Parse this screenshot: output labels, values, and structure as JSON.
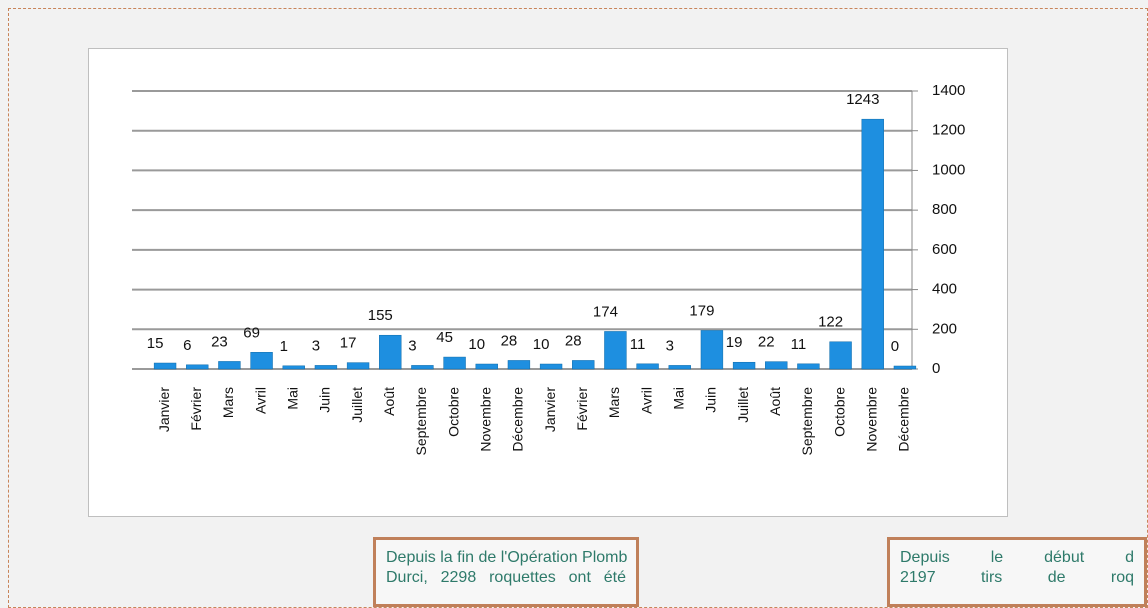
{
  "chart_data": {
    "type": "bar",
    "categories": [
      "Janvier",
      "Février",
      "Mars",
      "Avril",
      "Mai",
      "Juin",
      "Juillet",
      "Août",
      "Septembre",
      "Octobre",
      "Novembre",
      "Décembre",
      "Janvier",
      "Février",
      "Mars",
      "Avril",
      "Mai",
      "Juin",
      "Juillet",
      "Août",
      "Septembre",
      "Octobre",
      "Novembre",
      "Décembre"
    ],
    "values": [
      15,
      6,
      23,
      69,
      1,
      3,
      17,
      155,
      3,
      45,
      10,
      28,
      10,
      28,
      174,
      11,
      3,
      179,
      19,
      22,
      11,
      122,
      1243,
      0
    ],
    "color": "#1e8fe0",
    "ylim": [
      0,
      1400
    ],
    "yticks": [
      0,
      200,
      400,
      600,
      800,
      1000,
      1200,
      1400
    ],
    "grid": true,
    "y_axis_side": "right"
  },
  "notes": [
    {
      "lines": [
        "Depuis la fin de l'Opération Plomb",
        "Durci, 2298 roquettes ont été"
      ]
    },
    {
      "lines": [
        "Depuis le début d",
        "2197 tirs de roq"
      ]
    }
  ]
}
